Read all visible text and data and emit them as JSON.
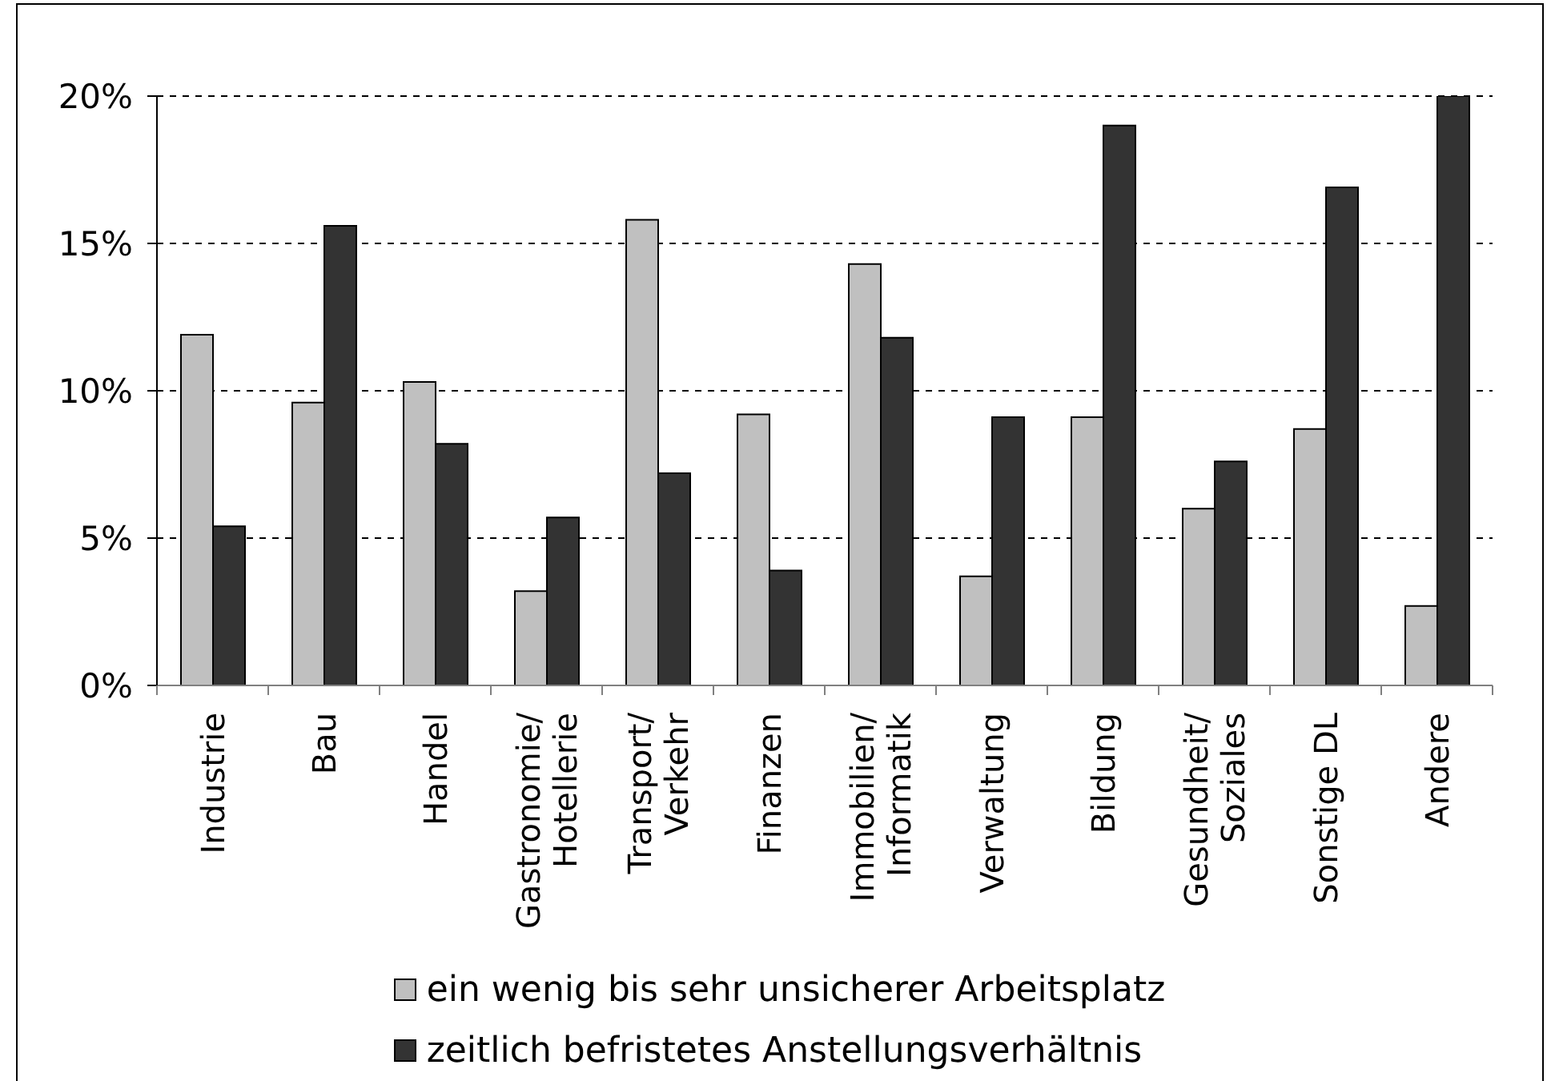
{
  "chart_data": {
    "type": "bar",
    "categories": [
      "Industrie",
      "Bau",
      "Handel",
      "Gastronomie/Hotellerie",
      "Transport/Verkehr",
      "Finanzen",
      "Immobilien/Informatik",
      "Verwaltung",
      "Bildung",
      "Gesundheit/Soziales",
      "Sonstige DL",
      "Andere"
    ],
    "series": [
      {
        "name": "ein wenig bis sehr unsicherer Arbeitsplatz",
        "color": "#c0c0c0",
        "values": [
          11.9,
          9.6,
          10.3,
          3.2,
          15.8,
          9.2,
          14.3,
          3.7,
          9.1,
          6.0,
          8.7,
          2.7
        ]
      },
      {
        "name": "zeitlich befristetes Anstellungsverhältnis",
        "color": "#333333",
        "values": [
          5.4,
          15.6,
          8.2,
          5.7,
          7.2,
          3.9,
          11.8,
          9.1,
          19.0,
          7.6,
          16.9,
          20.0
        ]
      }
    ],
    "ylim": [
      0,
      20
    ],
    "yticks": [
      {
        "value": 0,
        "label": "0%"
      },
      {
        "value": 5,
        "label": "5%"
      },
      {
        "value": 10,
        "label": "10%"
      },
      {
        "value": 15,
        "label": "15%"
      },
      {
        "value": 20,
        "label": "20%"
      }
    ],
    "grid": "y",
    "legend": "bottom"
  }
}
